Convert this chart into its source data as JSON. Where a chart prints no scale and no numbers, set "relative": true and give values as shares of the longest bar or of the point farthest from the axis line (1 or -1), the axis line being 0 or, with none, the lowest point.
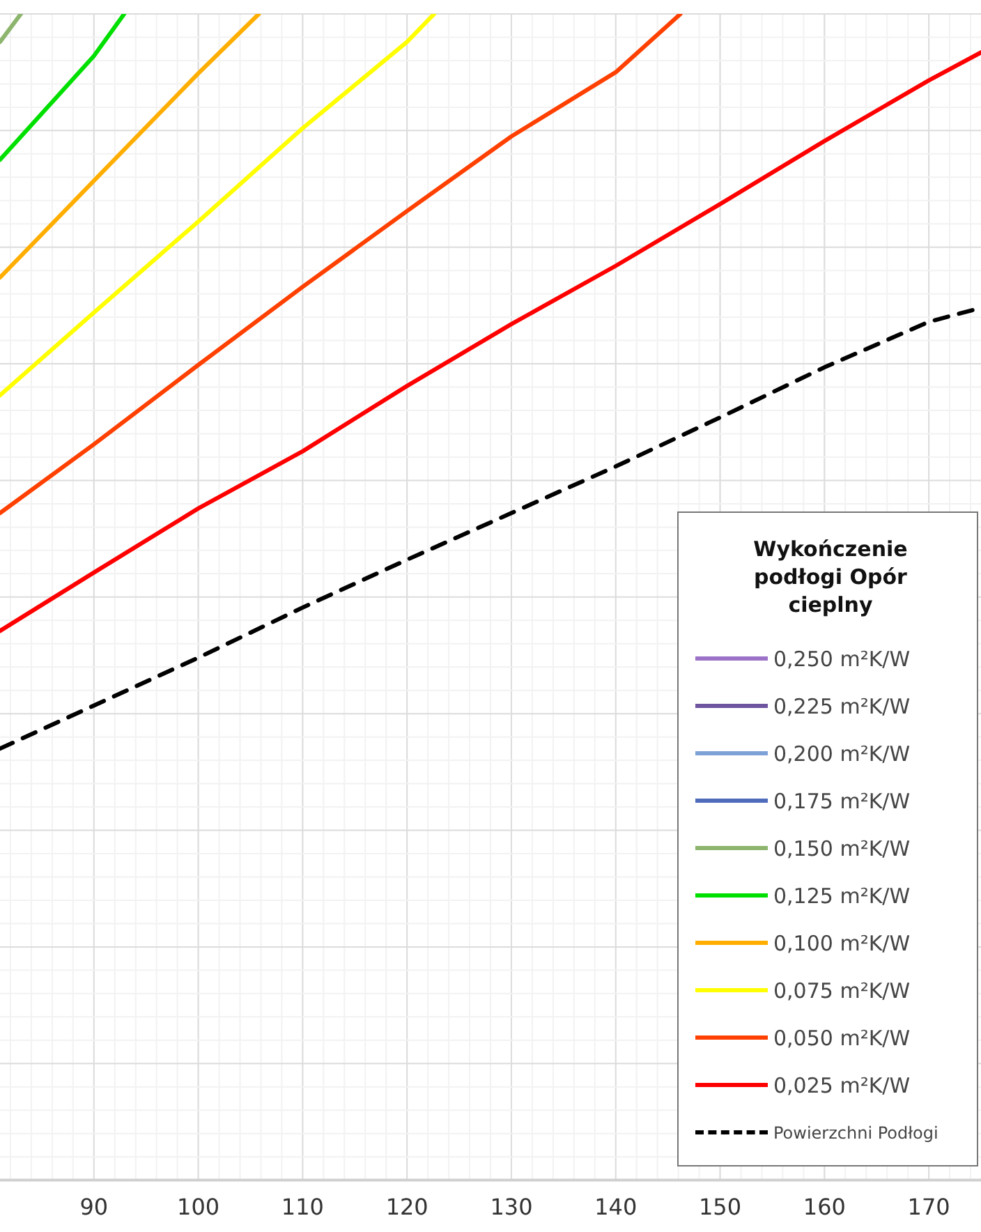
{
  "chart_data": {
    "type": "line",
    "relative": true,
    "legend_title": "Wykończenie podłogi Opór cieplny",
    "legend": "bottom right",
    "grid": true,
    "marker": "none",
    "xlim": [
      81,
      175
    ],
    "xticks": [
      90,
      100,
      110,
      120,
      130,
      140,
      150,
      160,
      170
    ],
    "series": [
      {
        "name": "0,250 m²K/W",
        "color": "#9b72c8"
      },
      {
        "name": "0,225 m²K/W",
        "color": "#6f55a0"
      },
      {
        "name": "0,200 m²K/W",
        "color": "#7ea2d8"
      },
      {
        "name": "0,175 m²K/W",
        "color": "#4f6cbc"
      },
      {
        "name": "0,150 m²K/W",
        "color": "#8db56e",
        "x": [
          81,
          83.0
        ],
        "values": [
          0.976,
          1
        ]
      },
      {
        "name": "0,125 m²K/W",
        "color": "#00e000",
        "x": [
          81,
          90,
          92.9
        ],
        "values": [
          0.875,
          0.964,
          1
        ]
      },
      {
        "name": "0,100 m²K/W",
        "color": "#ffae00",
        "x": [
          81,
          90,
          100,
          105.8
        ],
        "values": [
          0.774,
          0.857,
          0.949,
          1
        ]
      },
      {
        "name": "0,075 m²K/W",
        "color": "#ffff00",
        "x": [
          81,
          90,
          100,
          110,
          120,
          122.6
        ],
        "values": [
          0.673,
          0.744,
          0.822,
          0.902,
          0.976,
          1
        ]
      },
      {
        "name": "0,050 m²K/W",
        "color": "#ff4000",
        "x": [
          81,
          90,
          100,
          110,
          120,
          130,
          140,
          146.2
        ],
        "values": [
          0.572,
          0.631,
          0.699,
          0.766,
          0.831,
          0.895,
          0.95,
          1
        ]
      },
      {
        "name": "0,025 m²K/W",
        "color": "#ff0000",
        "x": [
          81,
          90,
          100,
          110,
          120,
          130,
          140,
          150,
          160,
          170,
          175
        ],
        "values": [
          0.471,
          0.521,
          0.576,
          0.625,
          0.681,
          0.734,
          0.784,
          0.837,
          0.891,
          0.943,
          0.967
        ]
      },
      {
        "name": "Powierzchni Podłogi",
        "color": "#000000",
        "line_style": "dashed",
        "x": [
          81,
          90,
          100,
          110,
          120,
          130,
          140,
          150,
          160,
          170,
          175
        ],
        "values": [
          0.37,
          0.407,
          0.448,
          0.491,
          0.532,
          0.572,
          0.612,
          0.654,
          0.697,
          0.736,
          0.748
        ]
      }
    ]
  }
}
